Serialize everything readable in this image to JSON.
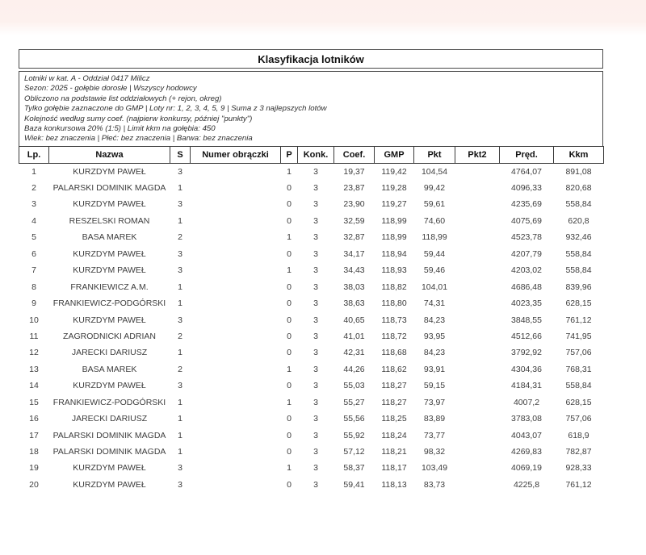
{
  "page": {
    "top_band_color": "#fdf1ee",
    "background_color": "#ffffff",
    "border_color": "#4a4a4a",
    "text_color": "#3d3d3d"
  },
  "document": {
    "title": "Klasyfikacja lotników",
    "info_lines": [
      "Lotniki w kat. A - Oddział 0417 Milicz",
      "Sezon: 2025 - gołębie dorosłe  |  Wszyscy hodowcy",
      "Obliczono na podstawie list oddziałowych (+ rejon, okreg)",
      "Tylko gołębie zaznaczone do GMP  |  Loty nr: 1, 2, 3, 4, 5, 9  |  Suma z 3 najlepszych lotów",
      "Kolejność według sumy coef. (najpierw konkursy, później \"punkty\")",
      "Baza konkursowa 20% (1:5) | Limit kkm na gołębia: 450",
      "Wiek: bez znaczenia  |  Płeć: bez znaczenia  |  Barwa: bez znaczenia"
    ]
  },
  "table": {
    "headers": [
      "Lp.",
      "Nazwa",
      "S",
      "Numer obrączki",
      "P",
      "Konk.",
      "Coef.",
      "GMP",
      "Pkt",
      "Pkt2",
      "Pręd.",
      "Kkm"
    ],
    "column_keys": [
      "lp",
      "nazwa",
      "s",
      "numer-obraczki",
      "p",
      "konk",
      "coef",
      "gmp",
      "pkt",
      "pkt2",
      "pred",
      "kkm"
    ],
    "rows": [
      [
        "1",
        "KURZDYM PAWEŁ",
        "3",
        "",
        "1",
        "3",
        "19,37",
        "119,42",
        "104,54",
        "",
        "4764,07",
        "891,08"
      ],
      [
        "2",
        "PALARSKI DOMINIK MAGDA",
        "1",
        "",
        "0",
        "3",
        "23,87",
        "119,28",
        "99,42",
        "",
        "4096,33",
        "820,68"
      ],
      [
        "3",
        "KURZDYM PAWEŁ",
        "3",
        "",
        "0",
        "3",
        "23,90",
        "119,27",
        "59,61",
        "",
        "4235,69",
        "558,84"
      ],
      [
        "4",
        "RESZELSKI ROMAN",
        "1",
        "",
        "0",
        "3",
        "32,59",
        "118,99",
        "74,60",
        "",
        "4075,69",
        "620,8"
      ],
      [
        "5",
        "BASA MAREK",
        "2",
        "",
        "1",
        "3",
        "32,87",
        "118,99",
        "118,99",
        "",
        "4523,78",
        "932,46"
      ],
      [
        "6",
        "KURZDYM PAWEŁ",
        "3",
        "",
        "0",
        "3",
        "34,17",
        "118,94",
        "59,44",
        "",
        "4207,79",
        "558,84"
      ],
      [
        "7",
        "KURZDYM PAWEŁ",
        "3",
        "",
        "1",
        "3",
        "34,43",
        "118,93",
        "59,46",
        "",
        "4203,02",
        "558,84"
      ],
      [
        "8",
        "FRANKIEWICZ A.M.",
        "1",
        "",
        "0",
        "3",
        "38,03",
        "118,82",
        "104,01",
        "",
        "4686,48",
        "839,96"
      ],
      [
        "9",
        "FRANKIEWICZ-PODGÓRSKI",
        "1",
        "",
        "0",
        "3",
        "38,63",
        "118,80",
        "74,31",
        "",
        "4023,35",
        "628,15"
      ],
      [
        "10",
        "KURZDYM PAWEŁ",
        "3",
        "",
        "0",
        "3",
        "40,65",
        "118,73",
        "84,23",
        "",
        "3848,55",
        "761,12"
      ],
      [
        "11",
        "ZAGRODNICKI ADRIAN",
        "2",
        "",
        "0",
        "3",
        "41,01",
        "118,72",
        "93,95",
        "",
        "4512,66",
        "741,95"
      ],
      [
        "12",
        "JARECKI DARIUSZ",
        "1",
        "",
        "0",
        "3",
        "42,31",
        "118,68",
        "84,23",
        "",
        "3792,92",
        "757,06"
      ],
      [
        "13",
        "BASA MAREK",
        "2",
        "",
        "1",
        "3",
        "44,26",
        "118,62",
        "93,91",
        "",
        "4304,36",
        "768,31"
      ],
      [
        "14",
        "KURZDYM PAWEŁ",
        "3",
        "",
        "0",
        "3",
        "55,03",
        "118,27",
        "59,15",
        "",
        "4184,31",
        "558,84"
      ],
      [
        "15",
        "FRANKIEWICZ-PODGÓRSKI",
        "1",
        "",
        "1",
        "3",
        "55,27",
        "118,27",
        "73,97",
        "",
        "4007,2",
        "628,15"
      ],
      [
        "16",
        "JARECKI DARIUSZ",
        "1",
        "",
        "0",
        "3",
        "55,56",
        "118,25",
        "83,89",
        "",
        "3783,08",
        "757,06"
      ],
      [
        "17",
        "PALARSKI DOMINIK MAGDA",
        "1",
        "",
        "0",
        "3",
        "55,92",
        "118,24",
        "73,77",
        "",
        "4043,07",
        "618,9"
      ],
      [
        "18",
        "PALARSKI DOMINIK MAGDA",
        "1",
        "",
        "0",
        "3",
        "57,12",
        "118,21",
        "98,32",
        "",
        "4269,83",
        "782,87"
      ],
      [
        "19",
        "KURZDYM PAWEŁ",
        "3",
        "",
        "1",
        "3",
        "58,37",
        "118,17",
        "103,49",
        "",
        "4069,19",
        "928,33"
      ],
      [
        "20",
        "KURZDYM PAWEŁ",
        "3",
        "",
        "0",
        "3",
        "59,41",
        "118,13",
        "83,73",
        "",
        "4225,8",
        "761,12"
      ]
    ]
  }
}
